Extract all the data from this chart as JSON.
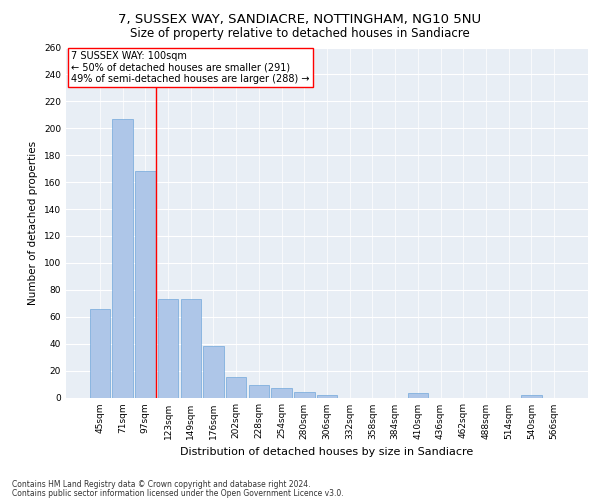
{
  "title1": "7, SUSSEX WAY, SANDIACRE, NOTTINGHAM, NG10 5NU",
  "title2": "Size of property relative to detached houses in Sandiacre",
  "xlabel": "Distribution of detached houses by size in Sandiacre",
  "ylabel": "Number of detached properties",
  "categories": [
    "45sqm",
    "71sqm",
    "97sqm",
    "123sqm",
    "149sqm",
    "176sqm",
    "202sqm",
    "228sqm",
    "254sqm",
    "280sqm",
    "306sqm",
    "332sqm",
    "358sqm",
    "384sqm",
    "410sqm",
    "436sqm",
    "462sqm",
    "488sqm",
    "514sqm",
    "540sqm",
    "566sqm"
  ],
  "values": [
    66,
    207,
    168,
    73,
    73,
    38,
    15,
    9,
    7,
    4,
    2,
    0,
    0,
    0,
    3,
    0,
    0,
    0,
    0,
    2,
    0
  ],
  "bar_color": "#aec6e8",
  "bar_edge_color": "#5b9bd5",
  "red_line_bar_index": 2,
  "annotation_box_text": "7 SUSSEX WAY: 100sqm\n← 50% of detached houses are smaller (291)\n49% of semi-detached houses are larger (288) →",
  "ylim": [
    0,
    260
  ],
  "yticks": [
    0,
    20,
    40,
    60,
    80,
    100,
    120,
    140,
    160,
    180,
    200,
    220,
    240,
    260
  ],
  "footer1": "Contains HM Land Registry data © Crown copyright and database right 2024.",
  "footer2": "Contains public sector information licensed under the Open Government Licence v3.0.",
  "bg_color": "#e8eef5",
  "title_fontsize": 9.5,
  "subtitle_fontsize": 8.5,
  "tick_fontsize": 6.5,
  "ylabel_fontsize": 7.5,
  "xlabel_fontsize": 8,
  "annotation_fontsize": 7,
  "footer_fontsize": 5.5
}
